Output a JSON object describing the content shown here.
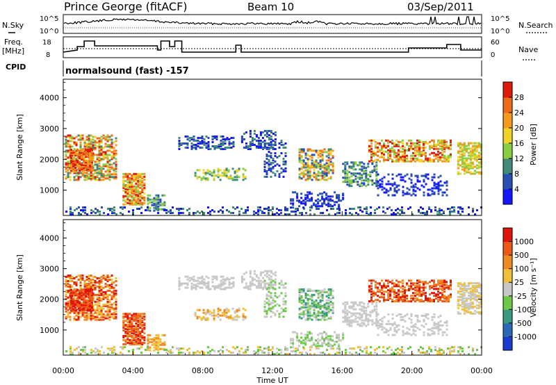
{
  "header": {
    "title": "Prince George (fitACF)",
    "beam": "Beam 10",
    "date": "03/Sep/2011"
  },
  "top_panel": {
    "left_label": "N.Sky",
    "right_label": "N.Search",
    "left_ticks": [
      "10^5",
      "10^0"
    ],
    "right_ticks": [
      "10^5",
      "10^0"
    ]
  },
  "freq_panel": {
    "left_label_1": "Freq.",
    "left_label_2": "[MHz]",
    "right_label": "Nave",
    "left_ticks": [
      "18",
      "8"
    ],
    "right_ticks": [
      "60",
      "0"
    ]
  },
  "cpid": {
    "label": "CPID",
    "text": "normalsound (fast) -157"
  },
  "chart_data": [
    {
      "type": "heatmap",
      "panel": "power",
      "ylabel": "Slant Range [km]",
      "ylim": [
        180,
        4600
      ],
      "yticks": [
        "1000",
        "2000",
        "3000",
        "4000"
      ],
      "xlim": [
        0,
        24
      ],
      "colorbar_label": "Power [dB]",
      "colorbar_ticks": [
        "4",
        "8",
        "12",
        "16",
        "20",
        "24",
        "28"
      ],
      "colorscale": [
        "#1515ff",
        "#2a4fb2",
        "#3f8a78",
        "#8acc44",
        "#f2d228",
        "#f59a1c",
        "#f06a18",
        "#e01a0a"
      ]
    },
    {
      "type": "heatmap",
      "panel": "velocity",
      "ylabel": "Slant Range [km]",
      "ylim": [
        180,
        4600
      ],
      "yticks": [
        "1000",
        "2000",
        "3000",
        "4000"
      ],
      "xlim": [
        0,
        24
      ],
      "colorbar_label": "Velocity [m s⁻¹]",
      "colorbar_ticks": [
        "1000",
        "500",
        "100",
        "25",
        "-25",
        "-100",
        "-500",
        "-1000"
      ],
      "colorscale": [
        "#1a3cd0",
        "#2a68b8",
        "#3a9a80",
        "#6cc848",
        "#c8c8c8",
        "#f2c038",
        "#f08a22",
        "#ee5a16",
        "#e0140a"
      ]
    }
  ],
  "xaxis": {
    "label": "Time UT",
    "ticks": [
      "00:00",
      "04:00",
      "08:00",
      "12:00",
      "16:00",
      "20:00",
      "00:00"
    ]
  }
}
